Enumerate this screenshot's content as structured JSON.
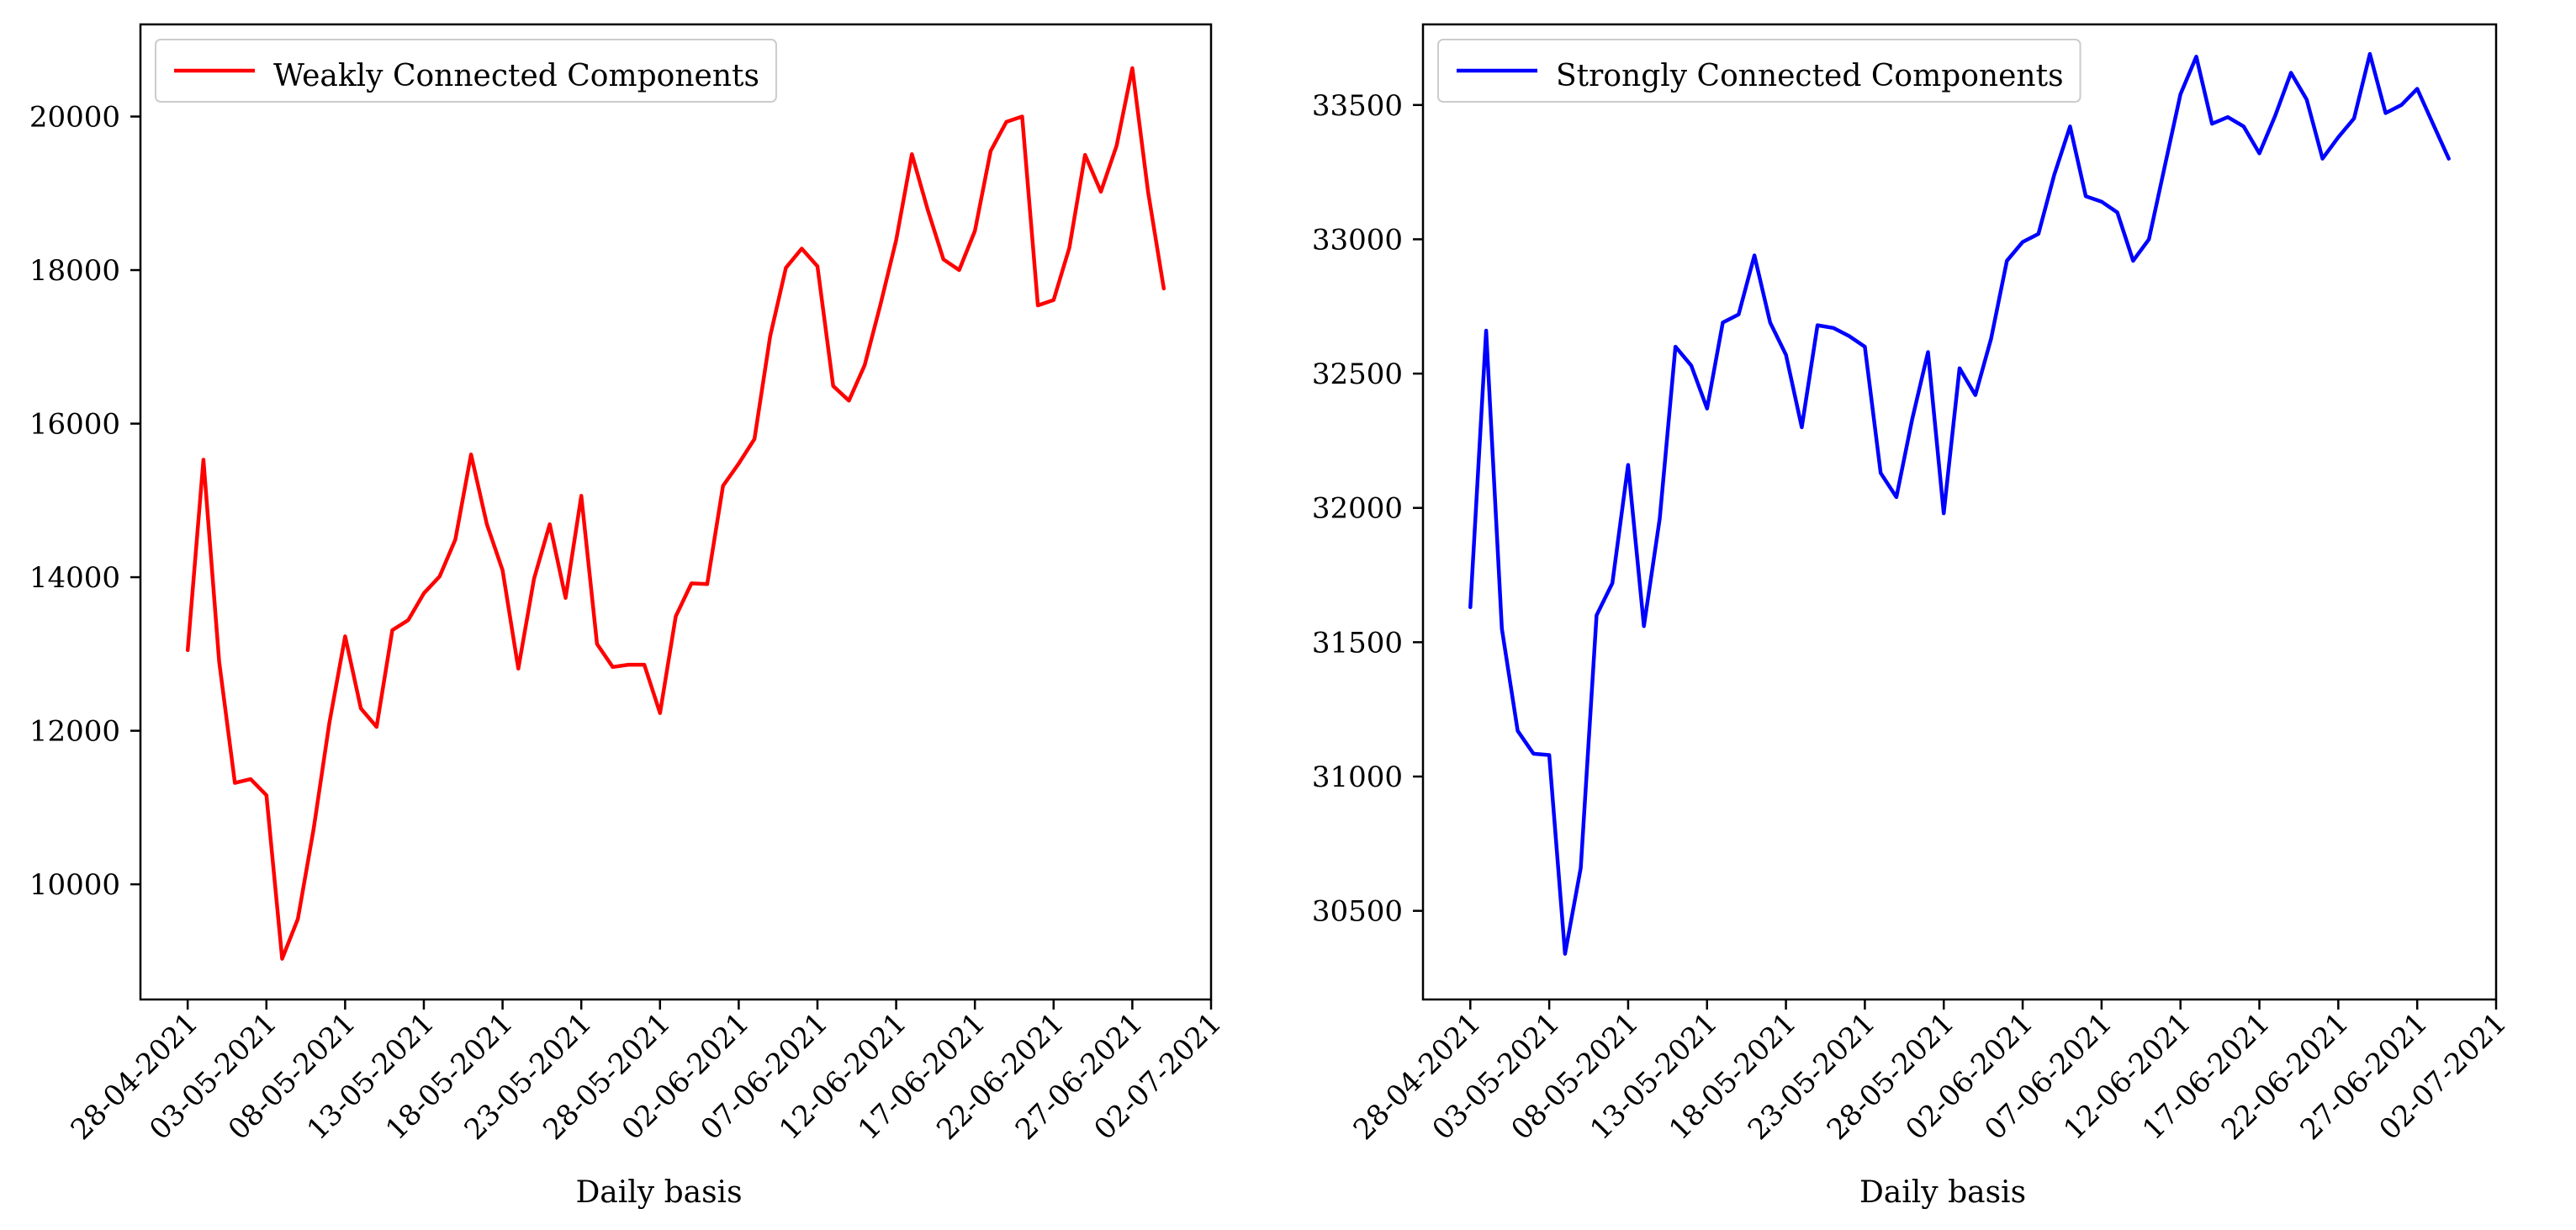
{
  "chart_data": [
    {
      "type": "line",
      "xlabel": "Daily basis",
      "ylabel": "",
      "legend": {
        "placement": "top-left"
      },
      "grid": false,
      "ylim": [
        8500,
        21200
      ],
      "xlim": [
        "2021-04-25",
        "2021-07-02"
      ],
      "yticks": [
        10000,
        12000,
        14000,
        16000,
        18000,
        20000
      ],
      "xticks": [
        "28-04-2021",
        "03-05-2021",
        "08-05-2021",
        "13-05-2021",
        "18-05-2021",
        "23-05-2021",
        "28-05-2021",
        "02-06-2021",
        "07-06-2021",
        "12-06-2021",
        "17-06-2021",
        "22-06-2021",
        "27-06-2021",
        "02-07-2021"
      ],
      "series": [
        {
          "name": "Weakly Connected Components",
          "color": "#ff0000",
          "x": [
            "2021-04-28",
            "2021-04-29",
            "2021-04-30",
            "2021-05-01",
            "2021-05-02",
            "2021-05-03",
            "2021-05-04",
            "2021-05-05",
            "2021-05-06",
            "2021-05-07",
            "2021-05-08",
            "2021-05-09",
            "2021-05-10",
            "2021-05-11",
            "2021-05-12",
            "2021-05-13",
            "2021-05-14",
            "2021-05-15",
            "2021-05-16",
            "2021-05-17",
            "2021-05-18",
            "2021-05-19",
            "2021-05-20",
            "2021-05-21",
            "2021-05-22",
            "2021-05-23",
            "2021-05-24",
            "2021-05-25",
            "2021-05-26",
            "2021-05-27",
            "2021-05-28",
            "2021-05-29",
            "2021-05-30",
            "2021-05-31",
            "2021-06-01",
            "2021-06-02",
            "2021-06-03",
            "2021-06-04",
            "2021-06-05",
            "2021-06-06",
            "2021-06-07",
            "2021-06-08",
            "2021-06-09",
            "2021-06-10",
            "2021-06-11",
            "2021-06-12",
            "2021-06-13",
            "2021-06-14",
            "2021-06-15",
            "2021-06-16",
            "2021-06-17",
            "2021-06-18",
            "2021-06-19",
            "2021-06-20",
            "2021-06-21",
            "2021-06-22",
            "2021-06-23",
            "2021-06-24",
            "2021-06-25",
            "2021-06-26",
            "2021-06-27",
            "2021-06-28",
            "2021-06-29"
          ],
          "values": [
            13050,
            15530,
            12900,
            11320,
            11370,
            11160,
            9030,
            9550,
            10720,
            12100,
            13230,
            12290,
            12050,
            13310,
            13440,
            13790,
            14010,
            14490,
            15600,
            14690,
            14090,
            12810,
            13980,
            14690,
            13730,
            15060,
            13130,
            12830,
            12860,
            12860,
            12230,
            13490,
            13920,
            13910,
            15190,
            15480,
            15800,
            17140,
            18030,
            18280,
            18050,
            16490,
            16300,
            16760,
            17550,
            18390,
            19510,
            18790,
            18140,
            18000,
            18510,
            19550,
            19930,
            20000,
            17540,
            17610,
            18290,
            19500,
            19020,
            19620,
            20630,
            19020,
            17760
          ]
        }
      ]
    },
    {
      "type": "line",
      "xlabel": "Daily basis",
      "ylabel": "",
      "legend": {
        "placement": "top-left"
      },
      "grid": false,
      "ylim": [
        30170,
        33800
      ],
      "xlim": [
        "2021-04-25",
        "2021-07-02"
      ],
      "yticks": [
        30500,
        31000,
        31500,
        32000,
        32500,
        33000,
        33500
      ],
      "xticks": [
        "28-04-2021",
        "03-05-2021",
        "08-05-2021",
        "13-05-2021",
        "18-05-2021",
        "23-05-2021",
        "28-05-2021",
        "02-06-2021",
        "07-06-2021",
        "12-06-2021",
        "17-06-2021",
        "22-06-2021",
        "27-06-2021",
        "02-07-2021"
      ],
      "series": [
        {
          "name": "Strongly Connected Components",
          "color": "#0000ff",
          "x": [
            "2021-04-28",
            "2021-04-29",
            "2021-04-30",
            "2021-05-01",
            "2021-05-02",
            "2021-05-03",
            "2021-05-04",
            "2021-05-05",
            "2021-05-06",
            "2021-05-07",
            "2021-05-08",
            "2021-05-09",
            "2021-05-10",
            "2021-05-11",
            "2021-05-12",
            "2021-05-13",
            "2021-05-14",
            "2021-05-15",
            "2021-05-16",
            "2021-05-17",
            "2021-05-18",
            "2021-05-19",
            "2021-05-20",
            "2021-05-21",
            "2021-05-22",
            "2021-05-23",
            "2021-05-24",
            "2021-05-25",
            "2021-05-26",
            "2021-05-27",
            "2021-05-28",
            "2021-05-29",
            "2021-05-30",
            "2021-05-31",
            "2021-06-01",
            "2021-06-02",
            "2021-06-03",
            "2021-06-04",
            "2021-06-05",
            "2021-06-06",
            "2021-06-07",
            "2021-06-08",
            "2021-06-09",
            "2021-06-10",
            "2021-06-11",
            "2021-06-12",
            "2021-06-13",
            "2021-06-14",
            "2021-06-15",
            "2021-06-16",
            "2021-06-17",
            "2021-06-18",
            "2021-06-19",
            "2021-06-20",
            "2021-06-21",
            "2021-06-22",
            "2021-06-23",
            "2021-06-24",
            "2021-06-25",
            "2021-06-26",
            "2021-06-27",
            "2021-06-28",
            "2021-06-29"
          ],
          "values": [
            31630,
            32660,
            31550,
            31170,
            31085,
            31080,
            30340,
            30660,
            31600,
            31720,
            32160,
            31560,
            31960,
            32600,
            32530,
            32370,
            32690,
            32720,
            32940,
            32690,
            32570,
            32300,
            32680,
            32670,
            32640,
            32600,
            32130,
            32040,
            32330,
            32580,
            31980,
            32520,
            32420,
            32630,
            32920,
            32990,
            33020,
            33240,
            33420,
            33160,
            33140,
            33100,
            32920,
            33000,
            33270,
            33540,
            33680,
            33430,
            33455,
            33420,
            33320,
            33460,
            33620,
            33520,
            33300,
            33380,
            33450,
            33690,
            33470,
            33500,
            33560,
            33430,
            33300
          ]
        }
      ]
    }
  ]
}
